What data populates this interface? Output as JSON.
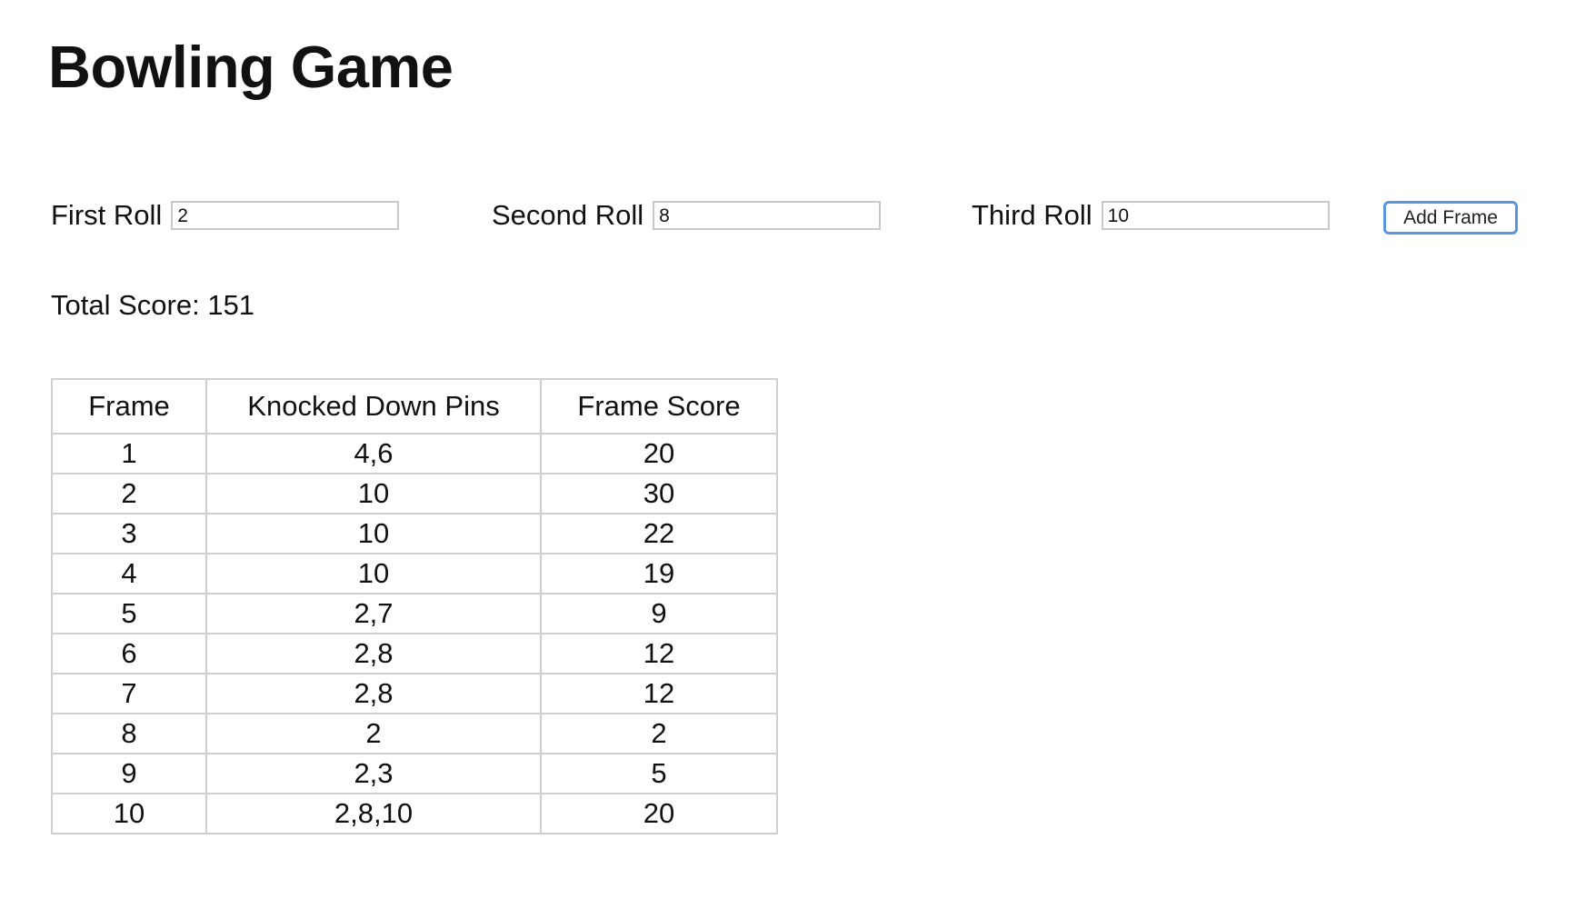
{
  "page": {
    "title": "Bowling Game"
  },
  "form": {
    "first_roll": {
      "label": "First Roll",
      "value": "2"
    },
    "second_roll": {
      "label": "Second Roll",
      "value": "8"
    },
    "third_roll": {
      "label": "Third Roll",
      "value": "10"
    },
    "add_button_label": "Add Frame"
  },
  "score": {
    "label": "Total Score:",
    "value": "151"
  },
  "table": {
    "headers": {
      "frame": "Frame",
      "pins": "Knocked Down Pins",
      "score": "Frame Score"
    },
    "rows": [
      {
        "frame": "1",
        "pins": "4,6",
        "score": "20"
      },
      {
        "frame": "2",
        "pins": "10",
        "score": "30"
      },
      {
        "frame": "3",
        "pins": "10",
        "score": "22"
      },
      {
        "frame": "4",
        "pins": "10",
        "score": "19"
      },
      {
        "frame": "5",
        "pins": "2,7",
        "score": "9"
      },
      {
        "frame": "6",
        "pins": "2,8",
        "score": "12"
      },
      {
        "frame": "7",
        "pins": "2,8",
        "score": "12"
      },
      {
        "frame": "8",
        "pins": "2",
        "score": "2"
      },
      {
        "frame": "9",
        "pins": "2,3",
        "score": "5"
      },
      {
        "frame": "10",
        "pins": "2,8,10",
        "score": "20"
      }
    ]
  },
  "colors": {
    "button_border": "#5b95e6",
    "table_border": "#cfcfcf",
    "input_border": "#c9c9c9"
  }
}
